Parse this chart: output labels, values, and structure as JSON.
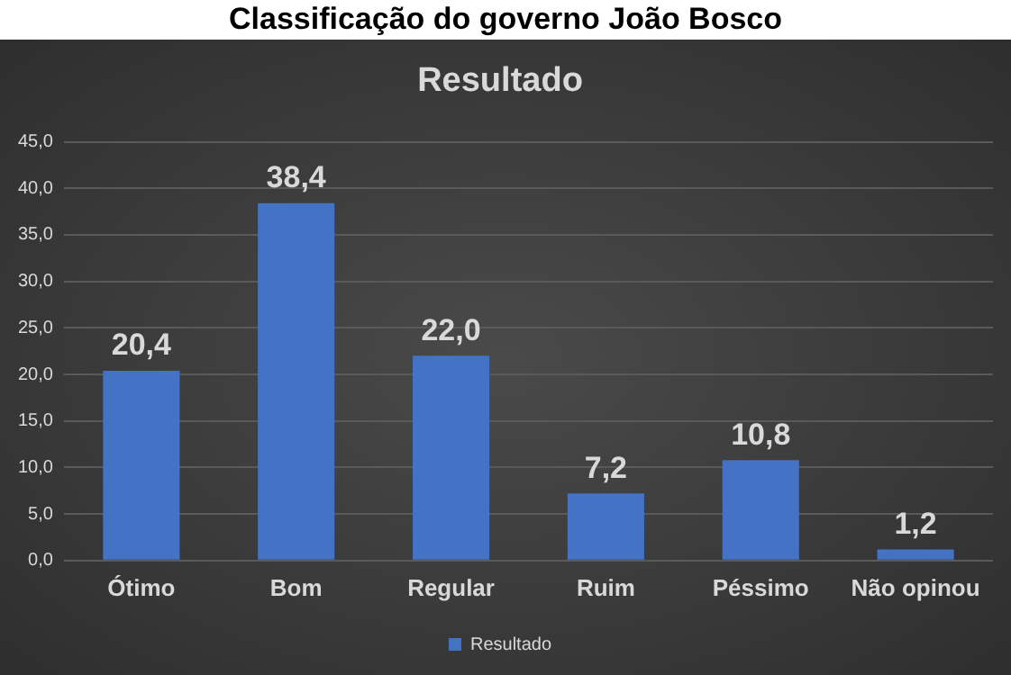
{
  "chart_data": {
    "type": "bar",
    "title": "Classificação do governo João Bosco",
    "subtitle": "Resultado",
    "categories": [
      "Ótimo",
      "Bom",
      "Regular",
      "Ruim",
      "Péssimo",
      "Não opinou"
    ],
    "series": [
      {
        "name": "Resultado",
        "color": "#4472c4",
        "values": [
          20.4,
          38.4,
          22.0,
          7.2,
          10.8,
          1.2
        ],
        "value_labels": [
          "20,4",
          "38,4",
          "22,0",
          "7,2",
          "10,8",
          "1,2"
        ]
      }
    ],
    "ylim": [
      0,
      45
    ],
    "yticks": [
      {
        "value": 0,
        "label": "0,0"
      },
      {
        "value": 5,
        "label": "5,0"
      },
      {
        "value": 10,
        "label": "10,0"
      },
      {
        "value": 15,
        "label": "15,0"
      },
      {
        "value": 20,
        "label": "20,0"
      },
      {
        "value": 25,
        "label": "25,0"
      },
      {
        "value": 30,
        "label": "30,0"
      },
      {
        "value": 35,
        "label": "35,0"
      },
      {
        "value": 40,
        "label": "40,0"
      },
      {
        "value": 45,
        "label": "45,0"
      }
    ],
    "grid": "y",
    "legend": "bottom"
  }
}
